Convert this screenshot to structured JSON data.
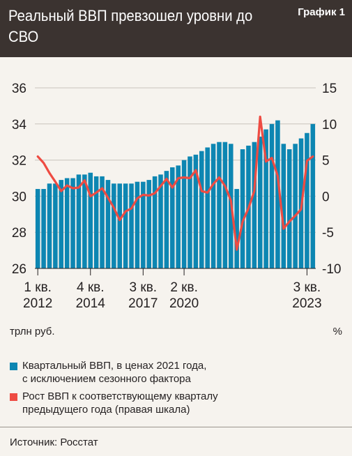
{
  "header": {
    "title": "Реальный ВВП превзошел уровни до СВО",
    "figure_label": "График 1"
  },
  "colors": {
    "bars": "#0d86b2",
    "line": "#ee4b42",
    "header_bg": "#3b3330"
  },
  "units": {
    "left": "трлн руб.",
    "right": "%"
  },
  "legend": [
    {
      "label_lines": [
        "Квартальный ВВП, в ценах 2021 года,",
        "с исключением сезонного фактора"
      ],
      "color": "#0d86b2"
    },
    {
      "label_lines": [
        "Рост ВВП к соответствующему кварталу",
        "предыдущего года (правая шкала)"
      ],
      "color": "#ee4b42"
    }
  ],
  "source": "Источник: Росстат",
  "chart_data": {
    "type": "bar",
    "grid": true,
    "y_left": {
      "min": 26,
      "max": 36,
      "ticks": [
        26,
        28,
        30,
        32,
        34,
        36
      ]
    },
    "y_right": {
      "min": -10,
      "max": 15,
      "ticks": [
        -10,
        -5,
        0,
        5,
        10,
        15
      ]
    },
    "x_tick_labels": [
      {
        "index": 0,
        "lines": [
          "1 кв.",
          "2012"
        ]
      },
      {
        "index": 9,
        "lines": [
          "4 кв.",
          "2014"
        ]
      },
      {
        "index": 18,
        "lines": [
          "3 кв.",
          "2017"
        ]
      },
      {
        "index": 25,
        "lines": [
          "2 кв.",
          "2020"
        ]
      },
      {
        "index": 46,
        "lines": [
          "3 кв.",
          "2023"
        ]
      }
    ],
    "series": [
      {
        "name": "Квартальный ВВП, в ценах 2021 года, с исключением сезонного фактора",
        "type": "bar",
        "axis": "left",
        "values": [
          30.4,
          30.4,
          30.7,
          30.7,
          30.9,
          31.0,
          31.0,
          31.2,
          31.2,
          31.3,
          31.1,
          31.1,
          30.9,
          30.7,
          30.7,
          30.7,
          30.7,
          30.8,
          30.8,
          30.9,
          31.1,
          31.2,
          31.4,
          31.6,
          31.7,
          32.0,
          32.2,
          32.3,
          32.5,
          32.7,
          32.9,
          33.0,
          33.0,
          32.9,
          30.4,
          32.6,
          32.8,
          33.0,
          33.3,
          33.7,
          34.0,
          34.2,
          32.9,
          32.6,
          32.9,
          33.2,
          33.5,
          34.0
        ]
      },
      {
        "name": "Рост ВВП к соответствующему кварталу предыдущего года (правая шкала)",
        "type": "line",
        "axis": "right",
        "values": [
          5.5,
          4.6,
          3.2,
          2.0,
          0.7,
          1.5,
          1.1,
          1.2,
          2.2,
          0.0,
          0.5,
          1.1,
          -0.2,
          -1.6,
          -3.3,
          -2.1,
          -1.7,
          -0.3,
          0.2,
          0.1,
          0.4,
          1.4,
          2.4,
          1.2,
          2.5,
          2.6,
          2.5,
          3.6,
          0.7,
          0.5,
          1.7,
          2.6,
          1.4,
          -0.6,
          -7.4,
          -3.5,
          -1.7,
          0.7,
          11.0,
          4.8,
          5.3,
          2.8,
          -4.5,
          -3.5,
          -2.7,
          -1.8,
          4.9,
          5.5
        ]
      }
    ]
  }
}
